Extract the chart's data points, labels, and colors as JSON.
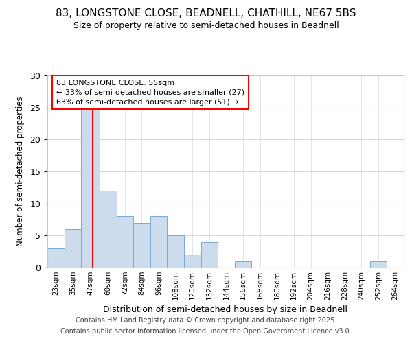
{
  "title1": "83, LONGSTONE CLOSE, BEADNELL, CHATHILL, NE67 5BS",
  "title2": "Size of property relative to semi-detached houses in Beadnell",
  "xlabel": "Distribution of semi-detached houses by size in Beadnell",
  "ylabel": "Number of semi-detached properties",
  "bin_labels": [
    "23sqm",
    "35sqm",
    "47sqm",
    "60sqm",
    "72sqm",
    "84sqm",
    "96sqm",
    "108sqm",
    "120sqm",
    "132sqm",
    "144sqm",
    "156sqm",
    "168sqm",
    "180sqm",
    "192sqm",
    "204sqm",
    "216sqm",
    "228sqm",
    "240sqm",
    "252sqm",
    "264sqm"
  ],
  "bin_left_edges": [
    23,
    35,
    47,
    60,
    72,
    84,
    96,
    108,
    120,
    132,
    144,
    156,
    168,
    180,
    192,
    204,
    216,
    228,
    240,
    252,
    264
  ],
  "bin_widths": [
    12,
    12,
    13,
    12,
    12,
    12,
    12,
    12,
    12,
    12,
    12,
    12,
    12,
    12,
    12,
    12,
    12,
    12,
    12,
    12,
    12
  ],
  "counts": [
    3,
    6,
    25,
    12,
    8,
    7,
    8,
    5,
    2,
    4,
    0,
    1,
    0,
    0,
    0,
    0,
    0,
    0,
    0,
    1,
    0
  ],
  "bar_color": "#ccdcec",
  "bar_edge_color": "#7aaad0",
  "vline_x": 55,
  "vline_color": "red",
  "annotation_title": "83 LONGSTONE CLOSE: 55sqm",
  "annotation_line1": "← 33% of semi-detached houses are smaller (27)",
  "annotation_line2": "63% of semi-detached houses are larger (51) →",
  "ylim": [
    0,
    30
  ],
  "yticks": [
    0,
    5,
    10,
    15,
    20,
    25,
    30
  ],
  "footer1": "Contains HM Land Registry data © Crown copyright and database right 2025.",
  "footer2": "Contains public sector information licensed under the Open Government Licence v3.0.",
  "bg_color": "#ffffff",
  "plot_bg_color": "#ffffff",
  "grid_color": "#d0d8e8"
}
